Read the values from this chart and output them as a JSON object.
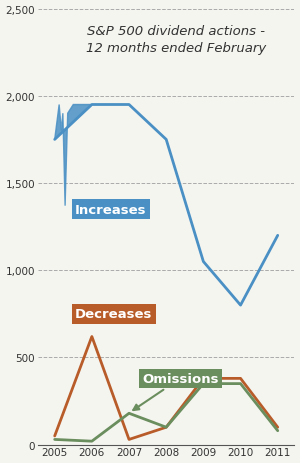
{
  "years": [
    2005,
    2006,
    2007,
    2008,
    2009,
    2010,
    2011
  ],
  "increases": [
    1750,
    1950,
    1950,
    1750,
    1050,
    800,
    1200
  ],
  "decreases": [
    50,
    620,
    30,
    100,
    380,
    380,
    100
  ],
  "omissions": [
    30,
    20,
    180,
    100,
    350,
    350,
    80
  ],
  "increases_color": "#4a90c4",
  "decreases_color": "#b85c2a",
  "omissions_color": "#6b8e5e",
  "title": "S&P 500 dividend actions -\n12 months ended February",
  "title_fontsize": 9.5,
  "ylim": [
    0,
    2500
  ],
  "yticks": [
    0,
    500,
    1000,
    1500,
    2000,
    2500
  ],
  "ytick_labels": [
    "0",
    "500",
    "1,000",
    "1,500",
    "2,000",
    "2,500"
  ],
  "bg_color": "#f5f5f0",
  "line_width": 2.0,
  "label_increases": "Increases",
  "label_decreases": "Decreases",
  "label_omissions": "Omissions",
  "spike_x": [
    2005.0,
    2005.15,
    2005.22,
    2005.29,
    2005.36,
    2005.5,
    2006.0
  ],
  "spike_y": [
    1750,
    1950,
    1700,
    1900,
    1370,
    1950,
    1950
  ]
}
